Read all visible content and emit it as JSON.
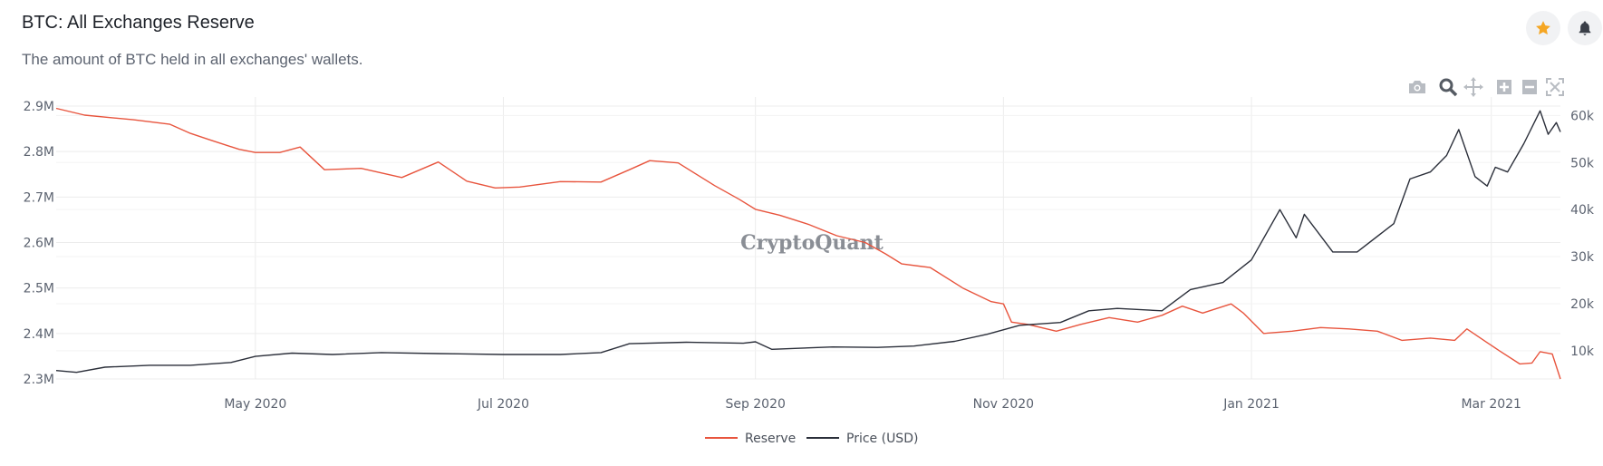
{
  "header": {
    "title": "BTC: All Exchanges Reserve",
    "subtitle": "The amount of BTC held in all exchanges' wallets."
  },
  "actions": {
    "favorite_icon": "star-icon",
    "alert_icon": "bell-icon"
  },
  "modebar": [
    "camera-icon",
    "zoom-icon",
    "pan-icon",
    "zoom-in-icon",
    "zoom-out-icon",
    "autoscale-icon"
  ],
  "watermark": "CryptoQuant",
  "colors": {
    "reserve": "#e8553e",
    "price": "#2b2f3a",
    "star": "#f5a623",
    "grid": "#ececec"
  },
  "chart_data": {
    "type": "line",
    "x_range": [
      "2020-03-13",
      "2021-03-18"
    ],
    "x_ticks": [
      {
        "date": "2020-05-01",
        "label": "May 2020"
      },
      {
        "date": "2020-07-01",
        "label": "Jul 2020"
      },
      {
        "date": "2020-09-01",
        "label": "Sep 2020"
      },
      {
        "date": "2020-11-01",
        "label": "Nov 2020"
      },
      {
        "date": "2021-01-01",
        "label": "Jan 2021"
      },
      {
        "date": "2021-03-01",
        "label": "Mar 2021"
      }
    ],
    "y_left": {
      "range": [
        2300000,
        2900000
      ],
      "ticks": [
        {
          "value": 2300000,
          "label": "2.3M"
        },
        {
          "value": 2400000,
          "label": "2.4M"
        },
        {
          "value": 2500000,
          "label": "2.5M"
        },
        {
          "value": 2600000,
          "label": "2.6M"
        },
        {
          "value": 2700000,
          "label": "2.7M"
        },
        {
          "value": 2800000,
          "label": "2.8M"
        },
        {
          "value": 2900000,
          "label": "2.9M"
        }
      ]
    },
    "y_right": {
      "range": [
        4000,
        62000
      ],
      "ticks": [
        {
          "value": 10000,
          "label": "10k"
        },
        {
          "value": 20000,
          "label": "20k"
        },
        {
          "value": 30000,
          "label": "30k"
        },
        {
          "value": 40000,
          "label": "40k"
        },
        {
          "value": 50000,
          "label": "50k"
        },
        {
          "value": 60000,
          "label": "60k"
        }
      ]
    },
    "grid": true,
    "legend_position": "bottom-center",
    "series": [
      {
        "name": "Reserve",
        "axis": "left",
        "color": "#e8553e",
        "points": [
          [
            "2020-03-13",
            2895000
          ],
          [
            "2020-03-20",
            2880000
          ],
          [
            "2020-04-01",
            2870000
          ],
          [
            "2020-04-10",
            2860000
          ],
          [
            "2020-04-15",
            2840000
          ],
          [
            "2020-04-20",
            2825000
          ],
          [
            "2020-04-27",
            2805000
          ],
          [
            "2020-05-01",
            2798000
          ],
          [
            "2020-05-07",
            2798000
          ],
          [
            "2020-05-12",
            2810000
          ],
          [
            "2020-05-18",
            2760000
          ],
          [
            "2020-05-27",
            2763000
          ],
          [
            "2020-06-06",
            2743000
          ],
          [
            "2020-06-15",
            2777000
          ],
          [
            "2020-06-22",
            2735000
          ],
          [
            "2020-06-29",
            2720000
          ],
          [
            "2020-07-05",
            2722000
          ],
          [
            "2020-07-15",
            2734000
          ],
          [
            "2020-07-25",
            2733000
          ],
          [
            "2020-08-01",
            2760000
          ],
          [
            "2020-08-06",
            2780000
          ],
          [
            "2020-08-13",
            2775000
          ],
          [
            "2020-08-22",
            2725000
          ],
          [
            "2020-08-28",
            2695000
          ],
          [
            "2020-09-01",
            2673000
          ],
          [
            "2020-09-07",
            2660000
          ],
          [
            "2020-09-14",
            2640000
          ],
          [
            "2020-09-21",
            2615000
          ],
          [
            "2020-09-28",
            2600000
          ],
          [
            "2020-10-03",
            2575000
          ],
          [
            "2020-10-07",
            2553000
          ],
          [
            "2020-10-14",
            2545000
          ],
          [
            "2020-10-22",
            2500000
          ],
          [
            "2020-10-29",
            2470000
          ],
          [
            "2020-11-01",
            2465000
          ],
          [
            "2020-11-03",
            2425000
          ],
          [
            "2020-11-07",
            2420000
          ],
          [
            "2020-11-14",
            2405000
          ],
          [
            "2020-11-20",
            2420000
          ],
          [
            "2020-11-27",
            2435000
          ],
          [
            "2020-12-04",
            2425000
          ],
          [
            "2020-12-10",
            2440000
          ],
          [
            "2020-12-15",
            2460000
          ],
          [
            "2020-12-20",
            2445000
          ],
          [
            "2020-12-27",
            2465000
          ],
          [
            "2020-12-30",
            2445000
          ],
          [
            "2021-01-04",
            2400000
          ],
          [
            "2021-01-11",
            2405000
          ],
          [
            "2021-01-18",
            2413000
          ],
          [
            "2021-01-25",
            2410000
          ],
          [
            "2021-02-01",
            2405000
          ],
          [
            "2021-02-07",
            2385000
          ],
          [
            "2021-02-14",
            2390000
          ],
          [
            "2021-02-20",
            2385000
          ],
          [
            "2021-02-23",
            2410000
          ],
          [
            "2021-02-28",
            2380000
          ],
          [
            "2021-03-03",
            2362000
          ],
          [
            "2021-03-08",
            2333000
          ],
          [
            "2021-03-11",
            2335000
          ],
          [
            "2021-03-13",
            2360000
          ],
          [
            "2021-03-16",
            2355000
          ],
          [
            "2021-03-18",
            2300000
          ]
        ]
      },
      {
        "name": "Price (USD)",
        "axis": "right",
        "color": "#2b2f3a",
        "points": [
          [
            "2020-03-13",
            5800
          ],
          [
            "2020-03-18",
            5400
          ],
          [
            "2020-03-25",
            6500
          ],
          [
            "2020-04-05",
            6900
          ],
          [
            "2020-04-15",
            6900
          ],
          [
            "2020-04-25",
            7500
          ],
          [
            "2020-05-01",
            8800
          ],
          [
            "2020-05-10",
            9500
          ],
          [
            "2020-05-20",
            9200
          ],
          [
            "2020-06-01",
            9600
          ],
          [
            "2020-06-15",
            9400
          ],
          [
            "2020-07-01",
            9200
          ],
          [
            "2020-07-15",
            9200
          ],
          [
            "2020-07-25",
            9600
          ],
          [
            "2020-08-01",
            11500
          ],
          [
            "2020-08-15",
            11800
          ],
          [
            "2020-08-29",
            11600
          ],
          [
            "2020-09-01",
            11900
          ],
          [
            "2020-09-05",
            10300
          ],
          [
            "2020-09-20",
            10800
          ],
          [
            "2020-10-01",
            10700
          ],
          [
            "2020-10-10",
            11000
          ],
          [
            "2020-10-20",
            12000
          ],
          [
            "2020-10-28",
            13500
          ],
          [
            "2020-11-05",
            15400
          ],
          [
            "2020-11-15",
            16000
          ],
          [
            "2020-11-22",
            18500
          ],
          [
            "2020-11-29",
            19000
          ],
          [
            "2020-12-10",
            18500
          ],
          [
            "2020-12-17",
            23000
          ],
          [
            "2020-12-25",
            24500
          ],
          [
            "2021-01-01",
            29300
          ],
          [
            "2021-01-08",
            40000
          ],
          [
            "2021-01-12",
            34000
          ],
          [
            "2021-01-14",
            39000
          ],
          [
            "2021-01-21",
            31000
          ],
          [
            "2021-01-27",
            31000
          ],
          [
            "2021-02-05",
            37000
          ],
          [
            "2021-02-09",
            46500
          ],
          [
            "2021-02-14",
            48000
          ],
          [
            "2021-02-18",
            51500
          ],
          [
            "2021-02-21",
            57000
          ],
          [
            "2021-02-25",
            47000
          ],
          [
            "2021-02-28",
            45000
          ],
          [
            "2021-03-02",
            49000
          ],
          [
            "2021-03-05",
            48000
          ],
          [
            "2021-03-09",
            54000
          ],
          [
            "2021-03-13",
            61000
          ],
          [
            "2021-03-15",
            56000
          ],
          [
            "2021-03-17",
            58500
          ],
          [
            "2021-03-18",
            56500
          ]
        ]
      }
    ]
  }
}
